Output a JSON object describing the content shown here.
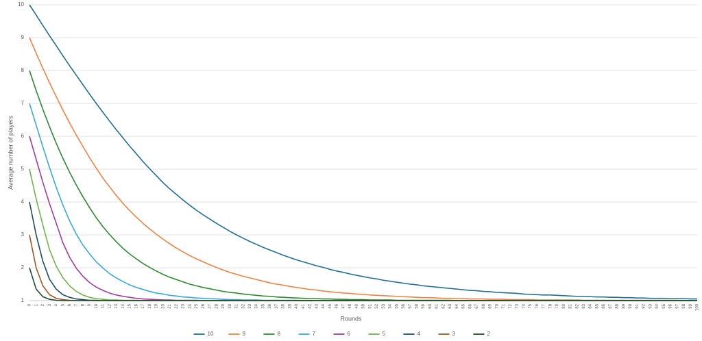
{
  "chart_data": {
    "type": "line",
    "x_label": "Rounds",
    "y_label": "Average number of players",
    "x": [
      0,
      1,
      2,
      3,
      4,
      5,
      6,
      7,
      8,
      9,
      10,
      11,
      12,
      13,
      14,
      15,
      16,
      17,
      18,
      19,
      20,
      21,
      22,
      23,
      24,
      25,
      26,
      27,
      28,
      29,
      30,
      31,
      32,
      33,
      34,
      35,
      36,
      37,
      38,
      39,
      40,
      41,
      42,
      43,
      44,
      45,
      46,
      47,
      48,
      49,
      50,
      51,
      52,
      53,
      54,
      55,
      56,
      57,
      58,
      59,
      60,
      61,
      62,
      63,
      64,
      65,
      66,
      67,
      68,
      69,
      70,
      71,
      72,
      73,
      74,
      75,
      76,
      77,
      78,
      79,
      80,
      81,
      82,
      83,
      84,
      85,
      86,
      87,
      88,
      89,
      90,
      91,
      92,
      93,
      94,
      95,
      96,
      97,
      98,
      99,
      100
    ],
    "xlim": [
      0,
      100
    ],
    "ylim": [
      1,
      10
    ],
    "yticks": [
      1,
      2,
      3,
      4,
      5,
      6,
      7,
      8,
      9,
      10
    ],
    "grid": true,
    "legend": "bottom",
    "series": [
      {
        "name": "10",
        "color": "#216e96",
        "values": [
          10,
          9.69,
          9.37,
          9.06,
          8.76,
          8.45,
          8.15,
          7.86,
          7.57,
          7.28,
          7,
          6.73,
          6.46,
          6.2,
          5.95,
          5.7,
          5.47,
          5.23,
          5.01,
          4.8,
          4.59,
          4.4,
          4.23,
          4.06,
          3.9,
          3.75,
          3.61,
          3.48,
          3.35,
          3.23,
          3.11,
          3,
          2.9,
          2.8,
          2.71,
          2.62,
          2.54,
          2.46,
          2.38,
          2.31,
          2.24,
          2.18,
          2.12,
          2.06,
          2.01,
          1.95,
          1.9,
          1.86,
          1.81,
          1.77,
          1.73,
          1.69,
          1.66,
          1.62,
          1.59,
          1.56,
          1.53,
          1.5,
          1.48,
          1.45,
          1.43,
          1.41,
          1.39,
          1.37,
          1.35,
          1.33,
          1.31,
          1.3,
          1.28,
          1.27,
          1.25,
          1.24,
          1.23,
          1.22,
          1.2,
          1.19,
          1.18,
          1.17,
          1.17,
          1.16,
          1.15,
          1.14,
          1.13,
          1.13,
          1.12,
          1.11,
          1.11,
          1.1,
          1.1,
          1.09,
          1.09,
          1.08,
          1.08,
          1.07,
          1.07,
          1.07,
          1.06,
          1.06,
          1.06,
          1.05,
          1.05
        ]
      },
      {
        "name": "9",
        "color": "#ee8244",
        "values": [
          9,
          8.53,
          8.07,
          7.63,
          7.21,
          6.8,
          6.41,
          6.04,
          5.69,
          5.35,
          5.03,
          4.73,
          4.46,
          4.2,
          3.96,
          3.74,
          3.54,
          3.35,
          3.18,
          3.02,
          2.87,
          2.73,
          2.6,
          2.48,
          2.37,
          2.27,
          2.18,
          2.09,
          2.01,
          1.93,
          1.86,
          1.8,
          1.74,
          1.69,
          1.64,
          1.59,
          1.54,
          1.5,
          1.47,
          1.43,
          1.4,
          1.37,
          1.34,
          1.32,
          1.29,
          1.27,
          1.25,
          1.23,
          1.22,
          1.2,
          1.19,
          1.17,
          1.16,
          1.15,
          1.14,
          1.13,
          1.12,
          1.11,
          1.1,
          1.09,
          1.09,
          1.08,
          1.07,
          1.07,
          1.06,
          1.06,
          1.05,
          1.05,
          1.05,
          1.04,
          1.04,
          1.04,
          1.03,
          1.03,
          1.03,
          1.03,
          1.02,
          1.02,
          1.02,
          1.02,
          1.02,
          1.02,
          1.02,
          1.01,
          1.01,
          1.01,
          1.01,
          1.01,
          1.01,
          1.01,
          1.01,
          1.01,
          1.01,
          1.01,
          1.01,
          1.01,
          1.01,
          1.01,
          1,
          1,
          1
        ]
      },
      {
        "name": "8",
        "color": "#2b8a2e",
        "values": [
          8,
          7.39,
          6.82,
          6.29,
          5.79,
          5.33,
          4.91,
          4.52,
          4.16,
          3.83,
          3.52,
          3.25,
          3.01,
          2.79,
          2.59,
          2.42,
          2.27,
          2.13,
          2.01,
          1.9,
          1.8,
          1.71,
          1.64,
          1.57,
          1.5,
          1.45,
          1.4,
          1.36,
          1.32,
          1.28,
          1.25,
          1.23,
          1.2,
          1.18,
          1.16,
          1.14,
          1.13,
          1.11,
          1.1,
          1.09,
          1.08,
          1.07,
          1.06,
          1.06,
          1.05,
          1.05,
          1.04,
          1.04,
          1.03,
          1.03,
          1.03,
          1.02,
          1.02,
          1.02,
          1.02,
          1.01,
          1.01,
          1.01,
          1.01,
          1.01,
          1.01,
          1.01,
          1.01,
          1.01,
          1,
          1,
          1,
          1,
          1,
          1,
          1,
          1,
          1,
          1,
          1,
          1,
          1,
          1,
          1,
          1,
          1,
          1,
          1,
          1,
          1,
          1,
          1,
          1,
          1,
          1,
          1,
          1,
          1,
          1,
          1,
          1,
          1,
          1,
          1,
          1,
          1
        ]
      },
      {
        "name": "7",
        "color": "#37a9de",
        "values": [
          7,
          6.34,
          5.68,
          5.05,
          4.45,
          3.91,
          3.43,
          3.03,
          2.69,
          2.42,
          2.18,
          1.99,
          1.82,
          1.69,
          1.58,
          1.48,
          1.4,
          1.34,
          1.28,
          1.23,
          1.2,
          1.16,
          1.14,
          1.11,
          1.1,
          1.08,
          1.07,
          1.06,
          1.05,
          1.04,
          1.03,
          1.03,
          1.02,
          1.02,
          1.02,
          1.01,
          1.01,
          1.01,
          1.01,
          1.01,
          1.01,
          1,
          1,
          1,
          1,
          1,
          1,
          1,
          1,
          1,
          1,
          1,
          1,
          1,
          1,
          1,
          1,
          1,
          1,
          1,
          1,
          1,
          1,
          1,
          1,
          1,
          1,
          1,
          1,
          1,
          1,
          1,
          1,
          1,
          1,
          1,
          1,
          1,
          1,
          1,
          1,
          1,
          1,
          1,
          1,
          1,
          1,
          1,
          1,
          1,
          1,
          1,
          1,
          1,
          1,
          1,
          1,
          1,
          1,
          1,
          1
        ]
      },
      {
        "name": "6",
        "color": "#a33b9f",
        "values": [
          6,
          5.3,
          4.6,
          3.95,
          3.36,
          2.76,
          2.32,
          1.99,
          1.74,
          1.55,
          1.41,
          1.31,
          1.23,
          1.17,
          1.13,
          1.1,
          1.07,
          1.05,
          1.04,
          1.03,
          1.02,
          1.02,
          1.01,
          1.01,
          1.01,
          1.01,
          1,
          1,
          1,
          1,
          1,
          1,
          1,
          1,
          1,
          1,
          1,
          1,
          1,
          1,
          1,
          1,
          1,
          1,
          1,
          1,
          1,
          1,
          1,
          1,
          1,
          1,
          1,
          1,
          1,
          1,
          1,
          1,
          1,
          1,
          1,
          1,
          1,
          1,
          1,
          1,
          1,
          1,
          1,
          1,
          1,
          1,
          1,
          1,
          1,
          1,
          1,
          1,
          1,
          1,
          1,
          1,
          1,
          1,
          1,
          1,
          1,
          1,
          1,
          1,
          1,
          1,
          1,
          1,
          1,
          1,
          1,
          1,
          1,
          1,
          1
        ]
      },
      {
        "name": "5",
        "color": "#6db54a",
        "values": [
          5,
          4.1,
          3.3,
          2.55,
          2.05,
          1.7,
          1.45,
          1.28,
          1.17,
          1.1,
          1.06,
          1.04,
          1.02,
          1.02,
          1.01,
          1.01,
          1.01,
          1,
          1,
          1,
          1,
          1,
          1,
          1,
          1,
          1,
          1,
          1,
          1,
          1,
          1,
          1,
          1,
          1,
          1,
          1,
          1,
          1,
          1,
          1,
          1,
          1,
          1,
          1,
          1,
          1,
          1,
          1,
          1,
          1,
          1,
          1,
          1,
          1,
          1,
          1,
          1,
          1,
          1,
          1,
          1,
          1,
          1,
          1,
          1,
          1,
          1,
          1,
          1,
          1,
          1,
          1,
          1,
          1,
          1,
          1,
          1,
          1,
          1,
          1,
          1,
          1,
          1,
          1,
          1,
          1,
          1,
          1,
          1,
          1,
          1,
          1,
          1,
          1,
          1,
          1,
          1,
          1,
          1,
          1,
          1
        ]
      },
      {
        "name": "4",
        "color": "#1e4a62",
        "values": [
          4,
          3,
          2.2,
          1.65,
          1.35,
          1.18,
          1.1,
          1.05,
          1.03,
          1.01,
          1.01,
          1,
          1,
          1,
          1,
          1,
          1,
          1,
          1,
          1,
          1,
          1,
          1,
          1,
          1,
          1,
          1,
          1,
          1,
          1,
          1,
          1,
          1,
          1,
          1,
          1,
          1,
          1,
          1,
          1,
          1,
          1,
          1,
          1,
          1,
          1,
          1,
          1,
          1,
          1,
          1,
          1,
          1,
          1,
          1,
          1,
          1,
          1,
          1,
          1,
          1,
          1,
          1,
          1,
          1,
          1,
          1,
          1,
          1,
          1,
          1,
          1,
          1,
          1,
          1,
          1,
          1,
          1,
          1,
          1,
          1,
          1,
          1,
          1,
          1,
          1,
          1,
          1,
          1,
          1,
          1,
          1,
          1,
          1,
          1,
          1,
          1,
          1,
          1,
          1,
          1
        ]
      },
      {
        "name": "3",
        "color": "#a0561f",
        "values": [
          3,
          2,
          1.45,
          1.18,
          1.07,
          1.03,
          1.01,
          1,
          1,
          1,
          1,
          1,
          1,
          1,
          1,
          1,
          1,
          1,
          1,
          1,
          1,
          1,
          1,
          1,
          1,
          1,
          1,
          1,
          1,
          1,
          1,
          1,
          1,
          1,
          1,
          1,
          1,
          1,
          1,
          1,
          1,
          1,
          1,
          1,
          1,
          1,
          1,
          1,
          1,
          1,
          1,
          1,
          1,
          1,
          1,
          1,
          1,
          1,
          1,
          1,
          1,
          1,
          1,
          1,
          1,
          1,
          1,
          1,
          1,
          1,
          1,
          1,
          1,
          1,
          1,
          1,
          1,
          1,
          1,
          1,
          1,
          1,
          1,
          1,
          1,
          1,
          1,
          1,
          1,
          1,
          1,
          1,
          1,
          1,
          1,
          1,
          1,
          1,
          1,
          1,
          1
        ]
      },
      {
        "name": "2",
        "color": "#1b4c2b",
        "values": [
          2,
          1.35,
          1.12,
          1.04,
          1.01,
          1,
          1,
          1,
          1,
          1,
          1,
          1,
          1,
          1,
          1,
          1,
          1,
          1,
          1,
          1,
          1,
          1,
          1,
          1,
          1,
          1,
          1,
          1,
          1,
          1,
          1,
          1,
          1,
          1,
          1,
          1,
          1,
          1,
          1,
          1,
          1,
          1,
          1,
          1,
          1,
          1,
          1,
          1,
          1,
          1,
          1,
          1,
          1,
          1,
          1,
          1,
          1,
          1,
          1,
          1,
          1,
          1,
          1,
          1,
          1,
          1,
          1,
          1,
          1,
          1,
          1,
          1,
          1,
          1,
          1,
          1,
          1,
          1,
          1,
          1,
          1,
          1,
          1,
          1,
          1,
          1,
          1,
          1,
          1,
          1,
          1,
          1,
          1,
          1,
          1,
          1,
          1,
          1,
          1,
          1,
          1
        ]
      }
    ]
  }
}
